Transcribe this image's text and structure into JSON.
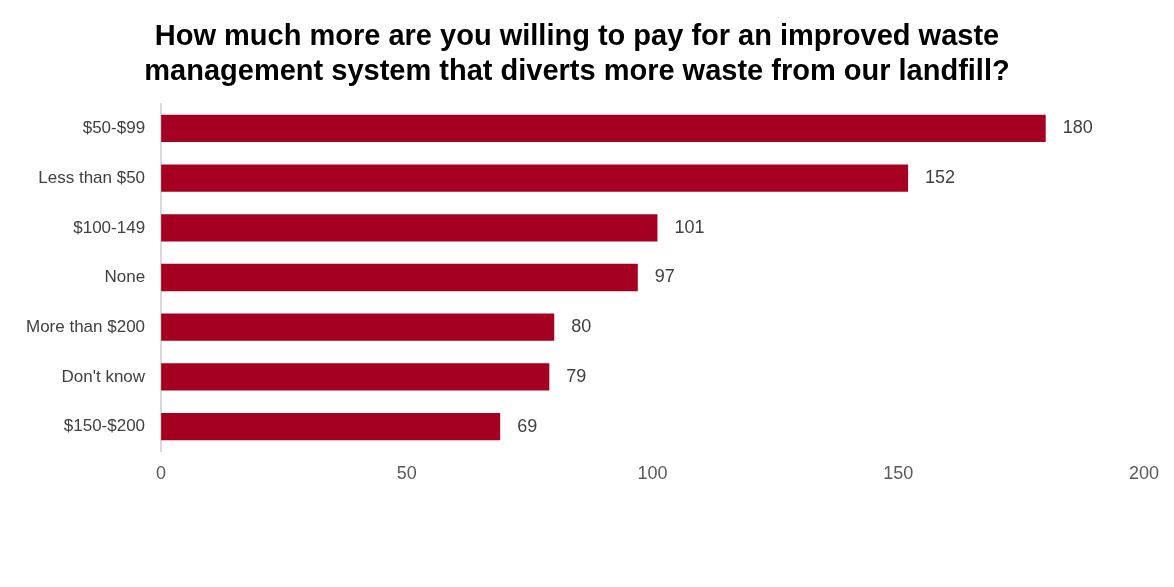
{
  "chart_data": {
    "type": "bar",
    "orientation": "horizontal",
    "title": "How much more are you willing to pay for an improved waste management system that diverts more waste from our landfill?",
    "categories": [
      "$50-$99",
      "Less than $50",
      "$100-149",
      "None",
      "More than $200",
      "Don't know",
      "$150-$200"
    ],
    "values": [
      180,
      152,
      101,
      97,
      80,
      79,
      69
    ],
    "color": "#a50021",
    "xlim": [
      0,
      200
    ],
    "xticks": [
      0,
      50,
      100,
      150,
      200
    ],
    "grid": false,
    "legend": false,
    "data_labels": true
  }
}
